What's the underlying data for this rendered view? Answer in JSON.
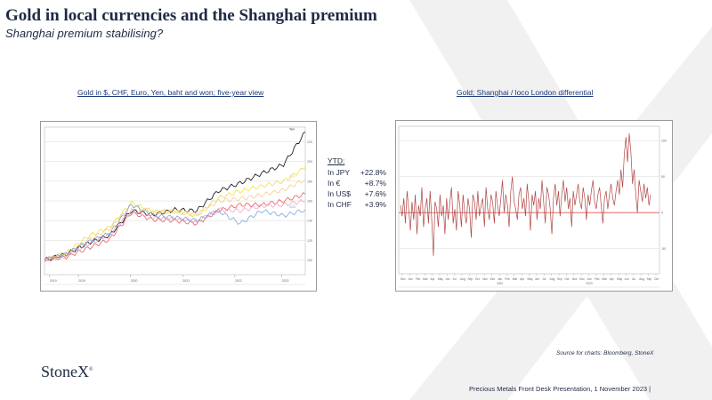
{
  "slide": {
    "title": "Gold in local currencies and the Shanghai premium",
    "subtitle": "Shanghai premium stabilising?"
  },
  "left_chart": {
    "caption": "Gold in $, CHF, Euro, Yen, baht and won; five-year view",
    "x_tick_labels": [
      "2019",
      "2019",
      "2020",
      "2021",
      "2022",
      "2023"
    ],
    "y_tick_labels": [
      "220",
      "200",
      "180",
      "160",
      "140",
      "120",
      "100"
    ],
    "series_end_labels": [
      "Yen",
      "",
      "Baht",
      "",
      "",
      "USD"
    ]
  },
  "ytd": {
    "heading": "YTD:",
    "rows": [
      {
        "label": "In JPY",
        "value": "+22.8%"
      },
      {
        "label": "In €",
        "value": "+8.7%"
      },
      {
        "label": "In US$",
        "value": "+7.6%"
      },
      {
        "label": "In CHF",
        "value": "+3.9%"
      }
    ]
  },
  "right_chart": {
    "caption": "Gold; Shanghai  / loco London  differential",
    "x_tick_labels": [
      "Dec",
      "Jan",
      "Feb",
      "Mar",
      "Apr",
      "May",
      "Jun",
      "Jul",
      "Aug",
      "Sep",
      "Oct",
      "Nov",
      "Dec",
      "Jan",
      "Feb",
      "Mar",
      "Apr",
      "May",
      "Jun",
      "Jul",
      "Aug",
      "Sep",
      "Oct",
      "Nov",
      "Dec",
      "Jan",
      "Feb",
      "Mar",
      "Apr",
      "May",
      "Jun",
      "Jul",
      "Aug",
      "Sep",
      "Oct"
    ],
    "year_labels": [
      "2022",
      "2023"
    ],
    "y_tick_labels": [
      "100",
      "50",
      "0",
      "-50"
    ]
  },
  "chart_data": [
    {
      "type": "line",
      "title": "Gold in $, CHF, Euro, Yen, baht and won; five-year view",
      "xlabel": "",
      "ylabel": "",
      "x": [
        "2018-11",
        "2019-05",
        "2019-11",
        "2020-03",
        "2020-08",
        "2020-12",
        "2021-05",
        "2021-11",
        "2022-03",
        "2022-09",
        "2023-02",
        "2023-06",
        "2023-10"
      ],
      "ylim": [
        85,
        235
      ],
      "grid": true,
      "series": [
        {
          "name": "Yen",
          "color": "#222222",
          "values": [
            100,
            106,
            117,
            125,
            150,
            146,
            151,
            150,
            170,
            178,
            188,
            197,
            230
          ]
        },
        {
          "name": "",
          "color": "#f2e03a",
          "values": [
            100,
            107,
            124,
            133,
            158,
            149,
            150,
            145,
            163,
            170,
            175,
            180,
            194
          ]
        },
        {
          "name": "",
          "color": "#f7cc8a",
          "values": [
            100,
            105,
            120,
            132,
            156,
            148,
            149,
            146,
            160,
            162,
            166,
            171,
            182
          ]
        },
        {
          "name": "Baht",
          "color": "#ee5a5a",
          "values": [
            100,
            103,
            112,
            121,
            148,
            141,
            140,
            137,
            150,
            156,
            156,
            160,
            167
          ]
        },
        {
          "name": "",
          "color": "#f2a6c2",
          "values": [
            100,
            104,
            116,
            126,
            150,
            143,
            142,
            139,
            151,
            150,
            155,
            156,
            160
          ]
        },
        {
          "name": "USD",
          "color": "#7ba7de",
          "values": [
            100,
            106,
            118,
            127,
            156,
            145,
            143,
            140,
            150,
            137,
            150,
            145,
            151
          ]
        }
      ]
    },
    {
      "type": "line",
      "title": "Gold; Shanghai  / loco London  differential",
      "xlabel": "",
      "ylabel": "",
      "ylim": [
        -85,
        120
      ],
      "y_ticks": [
        100,
        50,
        0,
        -50
      ],
      "grid": true,
      "series": [
        {
          "name": "",
          "color": "#b04545",
          "values": [
            10,
            -5,
            20,
            -15,
            30,
            5,
            -25,
            15,
            -10,
            25,
            -30,
            10,
            -5,
            35,
            -20,
            5,
            20,
            -15,
            30,
            -10,
            -60,
            15,
            5,
            -20,
            25,
            -5,
            10,
            -30,
            20,
            -10,
            15,
            35,
            -15,
            5,
            -25,
            30,
            10,
            -20,
            25,
            0,
            -15,
            20,
            5,
            -35,
            25,
            15,
            -10,
            30,
            -5,
            10,
            20,
            -20,
            35,
            5,
            -10,
            25,
            15,
            -15,
            30,
            10,
            -5,
            20,
            45,
            0,
            25,
            10,
            -20,
            30,
            50,
            15,
            5,
            -10,
            25,
            35,
            5,
            20,
            -5,
            40,
            15,
            -25,
            25,
            10,
            30,
            -10,
            20,
            5,
            45,
            15,
            -15,
            35,
            25,
            5,
            -30,
            20,
            40,
            10,
            30,
            -5,
            25,
            45,
            15,
            35,
            5,
            20,
            -20,
            30,
            10,
            25,
            40,
            15,
            5,
            35,
            20,
            -10,
            25,
            10,
            30,
            45,
            15,
            5,
            25,
            35,
            10,
            -15,
            20,
            30,
            5,
            25,
            40,
            20,
            10,
            30,
            45,
            25,
            60,
            35,
            80,
            105,
            70,
            110,
            85,
            40,
            60,
            25,
            0,
            45,
            30,
            15,
            40,
            20,
            35,
            10,
            25
          ]
        }
      ]
    }
  ]
}
